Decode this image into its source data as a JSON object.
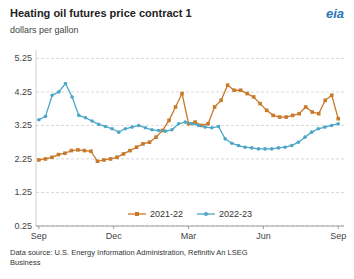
{
  "chart_data": {
    "type": "line",
    "title": "Heating oil futures price contract 1",
    "subtitle": "dollars per gallon",
    "footer": "Data source: U.S. Energy Information Administration, Refinitiv An LSEG\nBusiness",
    "annotations": [
      {
        "text": "eia",
        "color": "#2B77B8"
      }
    ],
    "xlim": [
      -0.5,
      53
    ],
    "xticks": [
      {
        "value": 0,
        "label": "Sep"
      },
      {
        "value": 13,
        "label": "Dec"
      },
      {
        "value": 26,
        "label": "Mar"
      },
      {
        "value": 39,
        "label": "Jun"
      },
      {
        "value": 52,
        "label": "Sep"
      }
    ],
    "ylim": [
      0.25,
      5.5
    ],
    "yticks": [
      0.25,
      1.25,
      2.25,
      3.25,
      4.25,
      5.25
    ],
    "grid": true,
    "legend": "bottom",
    "series": [
      {
        "name": "2021-22",
        "color": "#C8792A",
        "marker": "square",
        "line_style": "solid",
        "x": [
          0,
          1.1304,
          2.2609,
          3.3913,
          4.5217,
          5.6522,
          6.7826,
          7.913,
          9.0435,
          10.1739,
          11.3043,
          12.4348,
          13.5652,
          14.6957,
          15.8261,
          16.9565,
          18.087,
          19.2174,
          20.3478,
          21.4783,
          22.6087,
          23.7391,
          24.8696,
          26,
          27.1304,
          28.2609,
          29.3913,
          30.5217,
          31.6522,
          32.7826,
          33.913,
          35.0435,
          36.1739,
          37.3043,
          38.4348,
          39.5652,
          40.6957,
          41.8261,
          42.9565,
          44.087,
          45.2174,
          46.3478,
          47.4783,
          48.6087,
          49.7391,
          50.8696,
          52
        ],
        "values": [
          2.22,
          2.25,
          2.3,
          2.38,
          2.42,
          2.5,
          2.52,
          2.5,
          2.48,
          2.18,
          2.22,
          2.25,
          2.3,
          2.4,
          2.5,
          2.6,
          2.7,
          2.75,
          2.9,
          3.1,
          3.4,
          3.8,
          4.2,
          3.3,
          3.35,
          3.25,
          3.3,
          3.8,
          4.0,
          4.45,
          4.3,
          4.3,
          4.2,
          4.1,
          3.9,
          3.7,
          3.55,
          3.5,
          3.5,
          3.55,
          3.6,
          3.8,
          3.65,
          3.6,
          4.0,
          4.15,
          3.45
        ]
      },
      {
        "name": "2022-23",
        "color": "#4BA6C8",
        "marker": "circle",
        "line_style": "solid",
        "x": [
          0,
          1.1556,
          2.3111,
          3.4667,
          4.6222,
          5.7778,
          6.9333,
          8.0889,
          9.2444,
          10.4,
          11.5556,
          12.7111,
          13.8667,
          15.0222,
          16.1778,
          17.3333,
          18.4889,
          19.6444,
          20.8,
          21.9556,
          23.1111,
          24.2667,
          25.4222,
          26.5778,
          27.7333,
          28.8889,
          30.0444,
          31.2,
          32.3556,
          33.5111,
          34.6667,
          35.8222,
          36.9778,
          38.1333,
          39.2889,
          40.4444,
          41.6,
          42.7556,
          43.9111,
          45.0667,
          46.2222,
          47.3778,
          48.5333,
          49.6889,
          50.8444,
          52
        ],
        "values": [
          3.42,
          3.52,
          4.15,
          4.25,
          4.5,
          4.1,
          3.55,
          3.48,
          3.38,
          3.28,
          3.22,
          3.15,
          3.05,
          3.15,
          3.2,
          3.25,
          3.18,
          3.12,
          3.1,
          3.08,
          3.12,
          3.3,
          3.35,
          3.3,
          3.25,
          3.2,
          3.18,
          3.22,
          2.85,
          2.72,
          2.65,
          2.6,
          2.58,
          2.55,
          2.55,
          2.55,
          2.58,
          2.6,
          2.65,
          2.75,
          2.9,
          3.05,
          3.15,
          3.2,
          3.25,
          3.3
        ]
      }
    ]
  }
}
